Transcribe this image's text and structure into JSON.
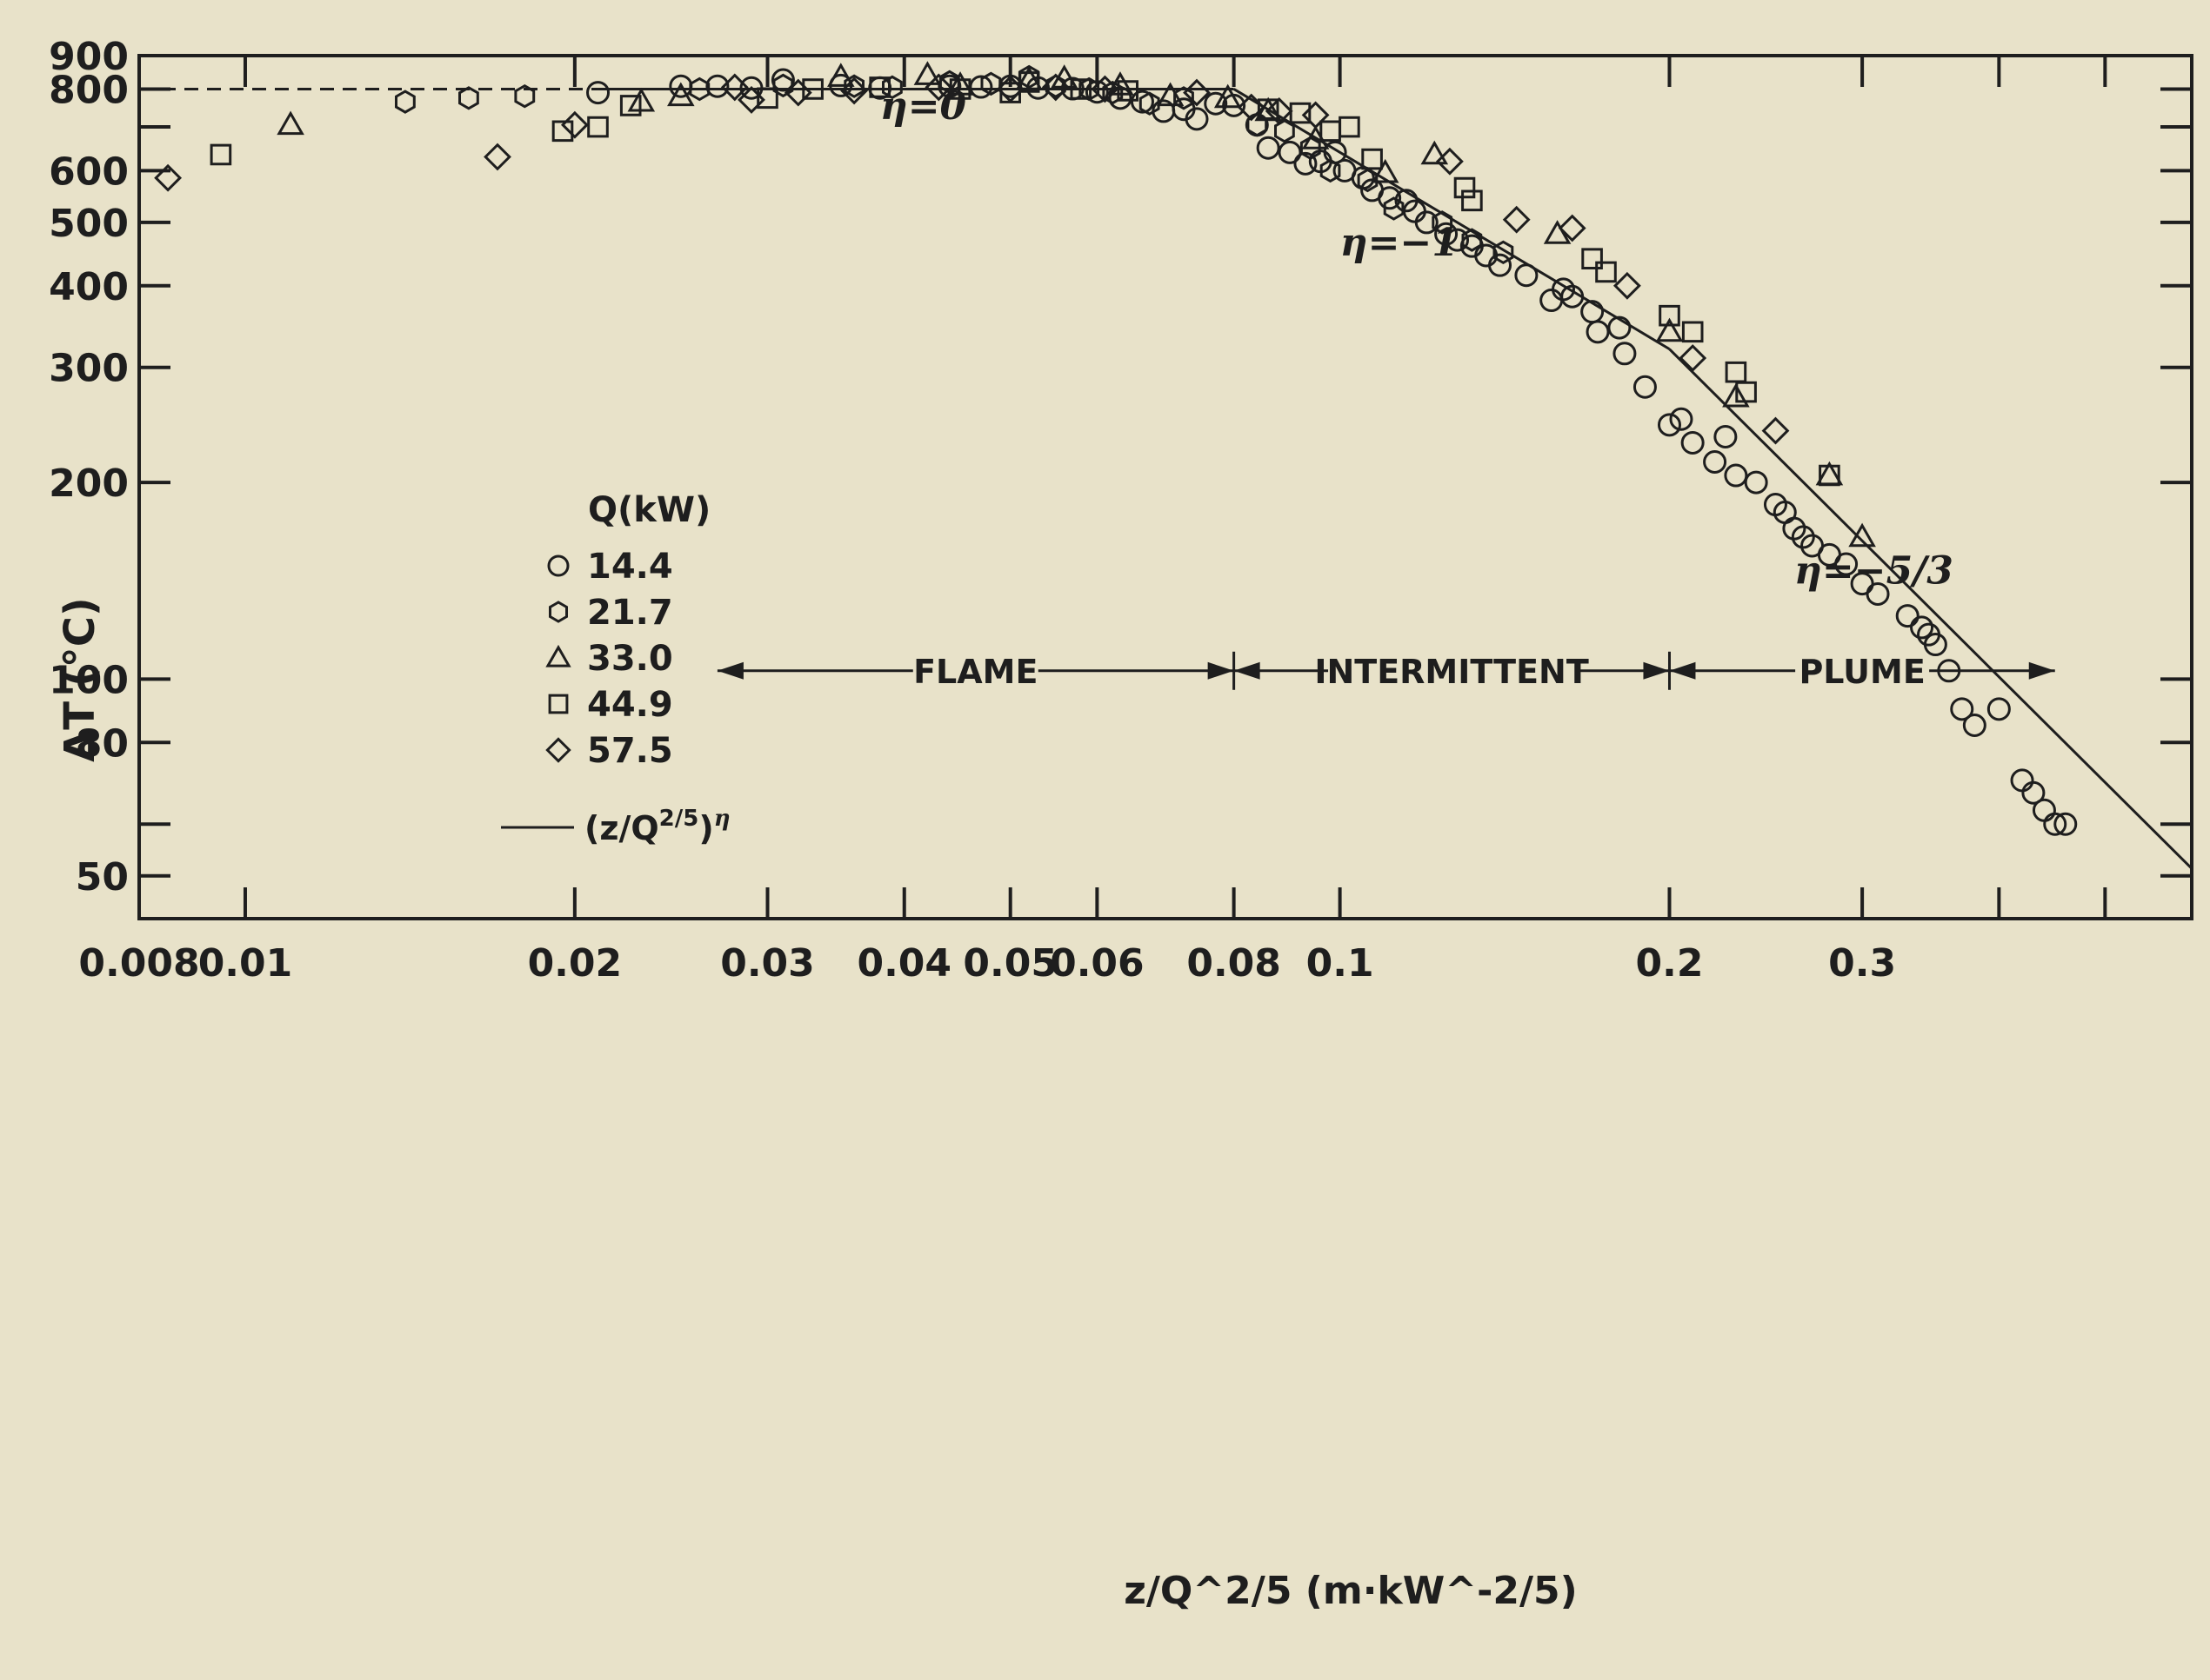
{
  "chart_data": {
    "type": "scatter",
    "x_scale": "log",
    "y_scale": "log",
    "xlim": [
      0.008,
      0.6
    ],
    "ylim": [
      43,
      900
    ],
    "xlabel": "z/Q^2/5 (m·kW^-2/5)",
    "ylabel": "ΔT (°C)",
    "x_ticks": [
      0.008,
      0.01,
      0.02,
      0.03,
      0.04,
      0.05,
      0.06,
      0.08,
      0.1,
      0.2,
      0.3
    ],
    "x_tick_labels": [
      "0.008",
      "0.01",
      "0.02",
      "0.03",
      "0.04",
      "0.05",
      "0.06",
      "0.08",
      "0.1",
      "0.2",
      "0.3"
    ],
    "x_minor_ticks": [
      0.4,
      0.5
    ],
    "y_ticks": [
      50,
      80,
      100,
      200,
      300,
      400,
      500,
      600,
      800,
      900
    ],
    "y_tick_labels": [
      "50",
      "80",
      "100",
      "200",
      "300",
      "400",
      "500",
      "600",
      "800",
      "900"
    ],
    "y_minor_ticks": [
      60,
      700
    ],
    "grid": false,
    "legend": {
      "position": "left",
      "title": "Q(kW)",
      "entries": [
        {
          "marker": "circle",
          "label": "14.4"
        },
        {
          "marker": "hexagon",
          "label": "21.7"
        },
        {
          "marker": "triangle",
          "label": "33.0"
        },
        {
          "marker": "square",
          "label": "44.9"
        },
        {
          "marker": "diamond",
          "label": "57.5"
        }
      ],
      "line_label_base": "(z/Q",
      "line_label_exp": "2/5",
      "line_label_close": ")",
      "line_label_eta": "η"
    },
    "fit_line": {
      "segments": [
        {
          "x": [
            0.008,
            0.021
          ],
          "y": [
            800,
            800
          ],
          "style": "dashed"
        },
        {
          "x": [
            0.021,
            0.08
          ],
          "y": [
            800,
            800
          ],
          "style": "solid"
        },
        {
          "x": [
            0.08,
            0.2
          ],
          "y": [
            800,
            320
          ],
          "style": "solid"
        },
        {
          "x": [
            0.2,
            0.6
          ],
          "y": [
            320,
            51.3
          ],
          "style": "solid"
        }
      ]
    },
    "annotations": [
      {
        "text": "η=0",
        "x": 0.038,
        "y": 720
      },
      {
        "text": "η=−1",
        "x": 0.1,
        "y": 445
      },
      {
        "text": "η=−5/3",
        "x": 0.26,
        "y": 140
      }
    ],
    "regions": [
      {
        "label": "FLAME",
        "x_start": 0.027,
        "x_end": 0.08
      },
      {
        "label": "INTERMITTENT",
        "x_start": 0.08,
        "x_end": 0.2
      },
      {
        "label": "PLUME",
        "x_start": 0.2,
        "x_end": 0.45
      }
    ],
    "region_y": 103,
    "series": [
      {
        "name": "14.4",
        "marker": "circle",
        "points": [
          [
            0.021,
            790
          ],
          [
            0.025,
            808
          ],
          [
            0.027,
            808
          ],
          [
            0.029,
            803
          ],
          [
            0.031,
            826
          ],
          [
            0.035,
            810
          ],
          [
            0.038,
            803
          ],
          [
            0.044,
            808
          ],
          [
            0.047,
            806
          ],
          [
            0.05,
            808
          ],
          [
            0.053,
            803
          ],
          [
            0.057,
            801
          ],
          [
            0.06,
            792
          ],
          [
            0.063,
            775
          ],
          [
            0.066,
            765
          ],
          [
            0.069,
            740
          ],
          [
            0.072,
            745
          ],
          [
            0.074,
            720
          ],
          [
            0.077,
            760
          ],
          [
            0.08,
            755
          ],
          [
            0.084,
            705
          ],
          [
            0.086,
            650
          ],
          [
            0.09,
            640
          ],
          [
            0.093,
            615
          ],
          [
            0.096,
            620
          ],
          [
            0.099,
            640
          ],
          [
            0.101,
            600
          ],
          [
            0.105,
            585
          ],
          [
            0.107,
            560
          ],
          [
            0.111,
            545
          ],
          [
            0.115,
            540
          ],
          [
            0.117,
            520
          ],
          [
            0.12,
            500
          ],
          [
            0.125,
            480
          ],
          [
            0.128,
            470
          ],
          [
            0.132,
            460
          ],
          [
            0.136,
            445
          ],
          [
            0.14,
            430
          ],
          [
            0.148,
            415
          ],
          [
            0.156,
            380
          ],
          [
            0.16,
            395
          ],
          [
            0.163,
            385
          ],
          [
            0.17,
            365
          ],
          [
            0.172,
            340
          ],
          [
            0.18,
            345
          ],
          [
            0.182,
            315
          ],
          [
            0.19,
            280
          ],
          [
            0.2,
            245
          ],
          [
            0.205,
            250
          ],
          [
            0.21,
            230
          ],
          [
            0.22,
            215
          ],
          [
            0.225,
            235
          ],
          [
            0.23,
            205
          ],
          [
            0.24,
            200
          ],
          [
            0.25,
            185
          ],
          [
            0.255,
            180
          ],
          [
            0.26,
            170
          ],
          [
            0.265,
            165
          ],
          [
            0.27,
            160
          ],
          [
            0.28,
            155
          ],
          [
            0.29,
            150
          ],
          [
            0.3,
            140
          ],
          [
            0.31,
            135
          ],
          [
            0.33,
            125
          ],
          [
            0.34,
            120
          ],
          [
            0.345,
            117
          ],
          [
            0.35,
            113
          ],
          [
            0.36,
            103
          ],
          [
            0.37,
            90
          ],
          [
            0.38,
            85
          ],
          [
            0.42,
            70
          ],
          [
            0.43,
            67
          ],
          [
            0.44,
            63
          ],
          [
            0.45,
            60
          ],
          [
            0.46,
            60
          ],
          [
            0.4,
            90
          ]
        ]
      },
      {
        "name": "21.7",
        "marker": "hexagon",
        "points": [
          [
            0.014,
            765
          ],
          [
            0.016,
            775
          ],
          [
            0.018,
            780
          ],
          [
            0.026,
            800
          ],
          [
            0.031,
            810
          ],
          [
            0.036,
            808
          ],
          [
            0.039,
            805
          ],
          [
            0.044,
            820
          ],
          [
            0.048,
            815
          ],
          [
            0.052,
            835
          ],
          [
            0.055,
            808
          ],
          [
            0.059,
            800
          ],
          [
            0.062,
            790
          ],
          [
            0.067,
            760
          ],
          [
            0.072,
            775
          ],
          [
            0.084,
            705
          ],
          [
            0.089,
            690
          ],
          [
            0.094,
            650
          ],
          [
            0.098,
            600
          ],
          [
            0.106,
            580
          ],
          [
            0.112,
            525
          ],
          [
            0.124,
            500
          ],
          [
            0.132,
            470
          ],
          [
            0.141,
            450
          ]
        ]
      },
      {
        "name": "33.0",
        "marker": "triangle",
        "points": [
          [
            0.011,
            705
          ],
          [
            0.023,
            765
          ],
          [
            0.025,
            780
          ],
          [
            0.035,
            835
          ],
          [
            0.042,
            840
          ],
          [
            0.052,
            825
          ],
          [
            0.056,
            830
          ],
          [
            0.063,
            810
          ],
          [
            0.07,
            780
          ],
          [
            0.079,
            775
          ],
          [
            0.086,
            740
          ],
          [
            0.095,
            670
          ],
          [
            0.11,
            595
          ],
          [
            0.122,
            635
          ],
          [
            0.158,
            480
          ],
          [
            0.2,
            340
          ],
          [
            0.23,
            270
          ],
          [
            0.28,
            205
          ],
          [
            0.3,
            165
          ],
          [
            0.045,
            810
          ]
        ]
      },
      {
        "name": "44.9",
        "marker": "square",
        "points": [
          [
            0.0095,
            635
          ],
          [
            0.0195,
            690
          ],
          [
            0.021,
            700
          ],
          [
            0.0225,
            755
          ],
          [
            0.03,
            775
          ],
          [
            0.033,
            800
          ],
          [
            0.038,
            805
          ],
          [
            0.045,
            800
          ],
          [
            0.05,
            790
          ],
          [
            0.058,
            800
          ],
          [
            0.064,
            795
          ],
          [
            0.086,
            745
          ],
          [
            0.092,
            735
          ],
          [
            0.098,
            690
          ],
          [
            0.102,
            700
          ],
          [
            0.107,
            625
          ],
          [
            0.13,
            565
          ],
          [
            0.132,
            540
          ],
          [
            0.17,
            440
          ],
          [
            0.175,
            420
          ],
          [
            0.2,
            360
          ],
          [
            0.21,
            340
          ],
          [
            0.23,
            295
          ],
          [
            0.235,
            275
          ],
          [
            0.28,
            205
          ],
          [
            0.052,
            820
          ]
        ]
      },
      {
        "name": "57.5",
        "marker": "diamond",
        "points": [
          [
            0.0085,
            585
          ],
          [
            0.017,
            630
          ],
          [
            0.02,
            705
          ],
          [
            0.028,
            805
          ],
          [
            0.032,
            790
          ],
          [
            0.036,
            795
          ],
          [
            0.043,
            805
          ],
          [
            0.05,
            800
          ],
          [
            0.055,
            805
          ],
          [
            0.061,
            800
          ],
          [
            0.074,
            790
          ],
          [
            0.083,
            750
          ],
          [
            0.088,
            740
          ],
          [
            0.095,
            730
          ],
          [
            0.126,
            620
          ],
          [
            0.145,
            505
          ],
          [
            0.163,
            490
          ],
          [
            0.183,
            400
          ],
          [
            0.21,
            310
          ],
          [
            0.25,
            240
          ],
          [
            0.029,
            770
          ]
        ]
      }
    ]
  }
}
